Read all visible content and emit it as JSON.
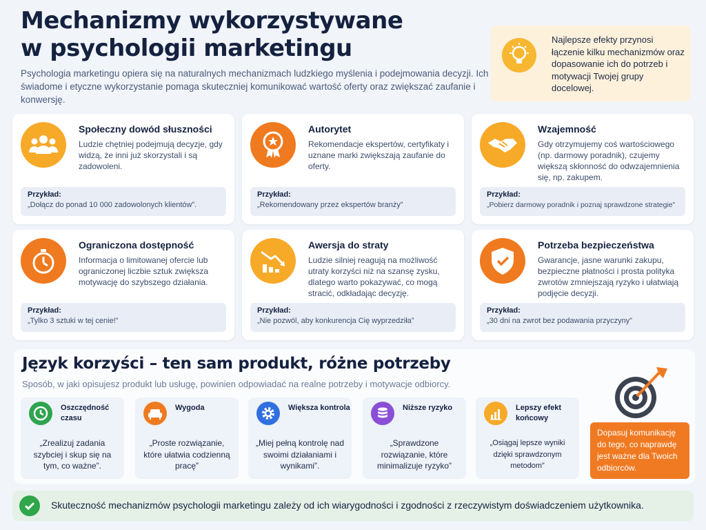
{
  "header": {
    "title_line1": "Mechanizmy wykorzystywane",
    "title_line2": "w psychologii marketingu",
    "intro": "Psychologia marketingu opiera się na naturalnych mechanizmach ludzkiego myślenia i podejmowania decyzji. Ich świadome i etyczne wykorzystanie pomaga skuteczniej komunikować wartość oferty oraz zwiększać zaufanie i konwersję."
  },
  "tip": {
    "icon": "lightbulb-icon",
    "text": "Najlepsze efekty przynosi łączenie kilku mechanizmów oraz dopasowanie ich do potrzeb i motywacji Twojej grupy docelowej."
  },
  "example_label": "Przykład:",
  "mechanisms": [
    {
      "icon": "people-icon",
      "color": "#f7a928",
      "title": "Społeczny dowód słuszności",
      "desc": "Ludzie chętniej podejmują decyzje, gdy widzą, że inni już skorzystali i są zadowoleni.",
      "example": "„Dołącz do ponad 10 000 zadowolonych klientów”."
    },
    {
      "icon": "award-badge-icon",
      "color": "#ef7a1f",
      "title": "Autorytet",
      "desc": "Rekomendacje ekspertów, certyfikaty i uznane marki zwiększają zaufanie do oferty.",
      "example": "„Rekomendowany przez ekspertów branży”"
    },
    {
      "icon": "handshake-icon",
      "color": "#f7a928",
      "title": "Wzajemność",
      "desc": "Gdy otrzymujemy coś wartościowego (np. darmowy poradnik), czujemy większą skłonność do odwzajemnienia się, np. zakupem.",
      "example": "„Pobierz darmowy poradnik i poznaj sprawdzone strategie”"
    },
    {
      "icon": "stopwatch-icon",
      "color": "#ef7a1f",
      "title": "Ograniczona dostępność",
      "desc": "Informacja o limitowanej ofercie lub ograniczonej liczbie sztuk zwiększa motywację do szybszego działania.",
      "example": "„Tylko 3 sztuki w tej cenie!”"
    },
    {
      "icon": "declining-chart-icon",
      "color": "#f7a928",
      "title": "Awersja do straty",
      "desc": "Ludzie silniej reagują na możliwość utraty korzyści niż na szansę zysku, dlatego warto pokazywać, co mogą stracić, odkładając decyzję.",
      "example": "„Nie pozwól, aby konkurencja Cię wyprzedziła”"
    },
    {
      "icon": "shield-check-icon",
      "color": "#ef7a1f",
      "title": "Potrzeba bezpieczeństwa",
      "desc": "Gwarancje, jasne warunki zakupu, bezpieczne płatności i prosta polityka zwrotów zmniejszają ryzyko i ułatwiają podjęcie decyzji.",
      "example": "„30 dni na zwrot bez podawania przyczyny”"
    }
  ],
  "benefits_section": {
    "title": "Język korzyści – ten sam produkt, różne potrzeby",
    "subtitle": "Sposób, w jaki opisujesz produkt lub usługę, powinien odpowiadać na realne potrzeby i motywacje odbiorcy.",
    "items": [
      {
        "icon": "clock-icon",
        "color": "#2ea44f",
        "title": "Oszczędność czasu",
        "quote": "„Zrealizuj zadania szybciej i skup się na tym, co ważne”."
      },
      {
        "icon": "sofa-icon",
        "color": "#ef7a1f",
        "title": "Wygoda",
        "quote": "„Proste rozwiązanie, które ułatwia codzienną pracę”"
      },
      {
        "icon": "gear-icon",
        "color": "#2f6fe0",
        "title": "Większa kontrola",
        "quote": "„Miej pełną kontrolę nad swoimi działaniami i wynikami”."
      },
      {
        "icon": "database-icon",
        "color": "#8a4fd6",
        "title": "Niższe ryzyko",
        "quote": "„Sprawdzone rozwiązanie, które minimalizuje ryzyko”"
      },
      {
        "icon": "bar-chart-icon",
        "color": "#f7a928",
        "title": "Lepszy efekt końcowy",
        "quote": "„Osiągaj lepsze wyniki dzięki sprawdzonym metodom”"
      }
    ],
    "target_icon": "target-arrow-icon",
    "callout": "Dopasuj komunikację do tego, co naprawdę jest ważne dla Twoich odbiorców."
  },
  "footer": {
    "icon": "check-circle-icon",
    "text": "Skuteczność mechanizmów psychologii marketingu zależy od ich wiarygodności i zgodności z rzeczywistym doświadczeniem użytkownika."
  }
}
